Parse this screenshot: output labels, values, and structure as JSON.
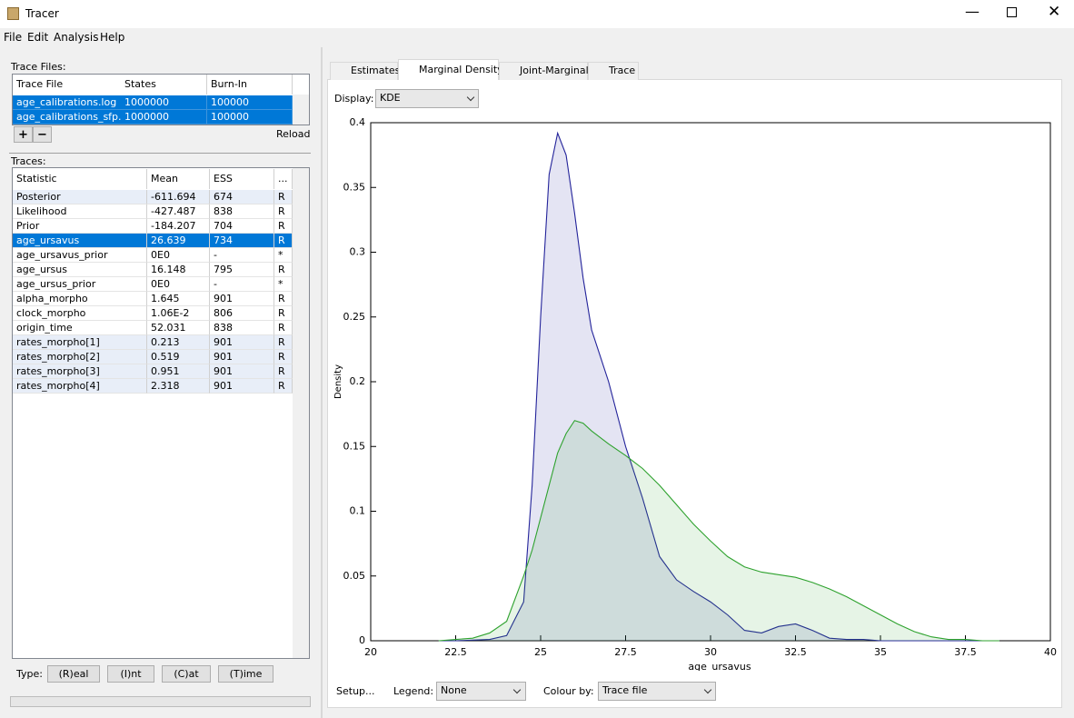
{
  "window": {
    "title": "Tracer"
  },
  "menu": [
    "File",
    "Edit",
    "Analysis",
    "Help"
  ],
  "trace_files": {
    "label": "Trace Files:",
    "columns": [
      "Trace File",
      "States",
      "Burn-In"
    ],
    "rows": [
      [
        "age_calibrations.log",
        "1000000",
        "100000"
      ],
      [
        "age_calibrations_sfp...",
        "1000000",
        "100000"
      ]
    ],
    "buttons": [
      "+",
      "−"
    ],
    "reload": "Reload"
  },
  "traces": {
    "label": "Traces:",
    "columns": [
      "Statistic",
      "Mean",
      "ESS",
      "..."
    ],
    "rows": [
      [
        "Posterior",
        "-611.694",
        "674",
        "R"
      ],
      [
        "Likelihood",
        "-427.487",
        "838",
        "R"
      ],
      [
        "Prior",
        "-184.207",
        "704",
        "R"
      ],
      [
        "age_ursavus",
        "26.639",
        "734",
        "R"
      ],
      [
        "age_ursavus_prior",
        "0E0",
        "-",
        "*"
      ],
      [
        "age_ursus",
        "16.148",
        "795",
        "R"
      ],
      [
        "age_ursus_prior",
        "0E0",
        "-",
        "*"
      ],
      [
        "alpha_morpho",
        "1.645",
        "901",
        "R"
      ],
      [
        "clock_morpho",
        "1.06E-2",
        "806",
        "R"
      ],
      [
        "origin_time",
        "52.031",
        "838",
        "R"
      ],
      [
        "rates_morpho[1]",
        "0.213",
        "901",
        "R"
      ],
      [
        "rates_morpho[2]",
        "0.519",
        "901",
        "R"
      ],
      [
        "rates_morpho[3]",
        "0.951",
        "901",
        "R"
      ],
      [
        "rates_morpho[4]",
        "2.318",
        "901",
        "R"
      ]
    ]
  },
  "type": {
    "label": "Type:",
    "buttons": [
      "(R)eal",
      "(I)nt",
      "(C)at",
      "(T)ime"
    ]
  },
  "tabs": [
    "Estimates",
    "Marginal Density",
    "Joint-Marginal",
    "Trace"
  ],
  "display": {
    "label": "Display:",
    "value": "KDE"
  },
  "controls": {
    "setup": "Setup...",
    "legend_label": "Legend:",
    "legend": "None",
    "colour_label": "Colour by:",
    "colour": "Trace file"
  },
  "chart_data": {
    "type": "area",
    "x_label": "age_ursavus",
    "y_label": "Density",
    "x": [
      22,
      22.5,
      23,
      23.5,
      24,
      24.5,
      24.75,
      25,
      25.25,
      25.5,
      25.75,
      26,
      26.25,
      26.5,
      27,
      27.5,
      28,
      28.5,
      29,
      29.5,
      30,
      30.5,
      31,
      31.5,
      32,
      32.5,
      33,
      33.5,
      34,
      34.5,
      35,
      35.5,
      36,
      36.5,
      37,
      37.5,
      38,
      38.5
    ],
    "series": [
      {
        "color": "#23239a",
        "values": [
          0,
          0,
          0.0005,
          0.001,
          0.004,
          0.03,
          0.12,
          0.25,
          0.36,
          0.392,
          0.375,
          0.33,
          0.28,
          0.24,
          0.2,
          0.15,
          0.11,
          0.065,
          0.047,
          0.038,
          0.03,
          0.02,
          0.008,
          0.006,
          0.011,
          0.013,
          0.008,
          0.002,
          0.001,
          0.001,
          0,
          0,
          0,
          0,
          0,
          0,
          0,
          0
        ]
      },
      {
        "color": "#2ea22e",
        "values": [
          0,
          0.001,
          0.002,
          0.006,
          0.015,
          0.05,
          0.07,
          0.095,
          0.12,
          0.145,
          0.16,
          0.17,
          0.168,
          0.162,
          0.152,
          0.143,
          0.133,
          0.12,
          0.105,
          0.09,
          0.077,
          0.065,
          0.057,
          0.053,
          0.051,
          0.049,
          0.045,
          0.04,
          0.034,
          0.027,
          0.02,
          0.013,
          0.007,
          0.003,
          0.001,
          0.001,
          0,
          0
        ]
      }
    ],
    "xlim": [
      20,
      40
    ],
    "xticks": [
      20,
      22.5,
      25,
      27.5,
      30,
      32.5,
      35,
      37.5,
      40
    ],
    "ylim": [
      0,
      0.4
    ],
    "yticks": [
      0,
      0.05,
      0.1,
      0.15,
      0.2,
      0.25,
      0.3,
      0.35,
      0.4
    ]
  }
}
